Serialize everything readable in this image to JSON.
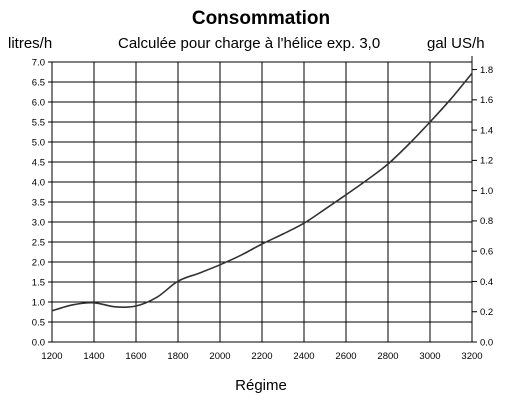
{
  "chart_data": {
    "type": "line",
    "title": "Consommation",
    "subtitle": "Calculée pour charge à l'hélice exp. 3,0",
    "ylabel": "litres/h",
    "y2label": "gal US/h",
    "xlabel": "Régime",
    "xlim": [
      1200,
      3200
    ],
    "ylim": [
      0,
      7
    ],
    "y2lim": [
      0,
      1.85
    ],
    "grid": true,
    "x_ticks": [
      "1200",
      "1400",
      "1600",
      "1800",
      "2000",
      "2200",
      "2400",
      "2600",
      "2800",
      "3000",
      "3200"
    ],
    "y_ticks": [
      "0.0",
      "0.5",
      "1.0",
      "1.5",
      "2.0",
      "2.5",
      "3.0",
      "3.5",
      "4.0",
      "4.5",
      "5.0",
      "5.5",
      "6.0",
      "6.5",
      "7.0"
    ],
    "y2_ticks": [
      "0.0",
      "0.2",
      "0.4",
      "0.6",
      "0.8",
      "1.0",
      "1.2",
      "1.4",
      "1.6",
      "1.8"
    ],
    "series": [
      {
        "x": [
          1200,
          1300,
          1400,
          1500,
          1600,
          1700,
          1800,
          1900,
          2000,
          2100,
          2200,
          2300,
          2400,
          2500,
          2600,
          2700,
          2800,
          2900,
          3000,
          3100,
          3200
        ],
        "y": [
          0.78,
          0.93,
          0.98,
          0.88,
          0.9,
          1.12,
          1.52,
          1.72,
          1.93,
          2.17,
          2.45,
          2.7,
          2.97,
          3.32,
          3.68,
          4.05,
          4.45,
          4.95,
          5.5,
          6.08,
          6.72
        ]
      }
    ]
  }
}
